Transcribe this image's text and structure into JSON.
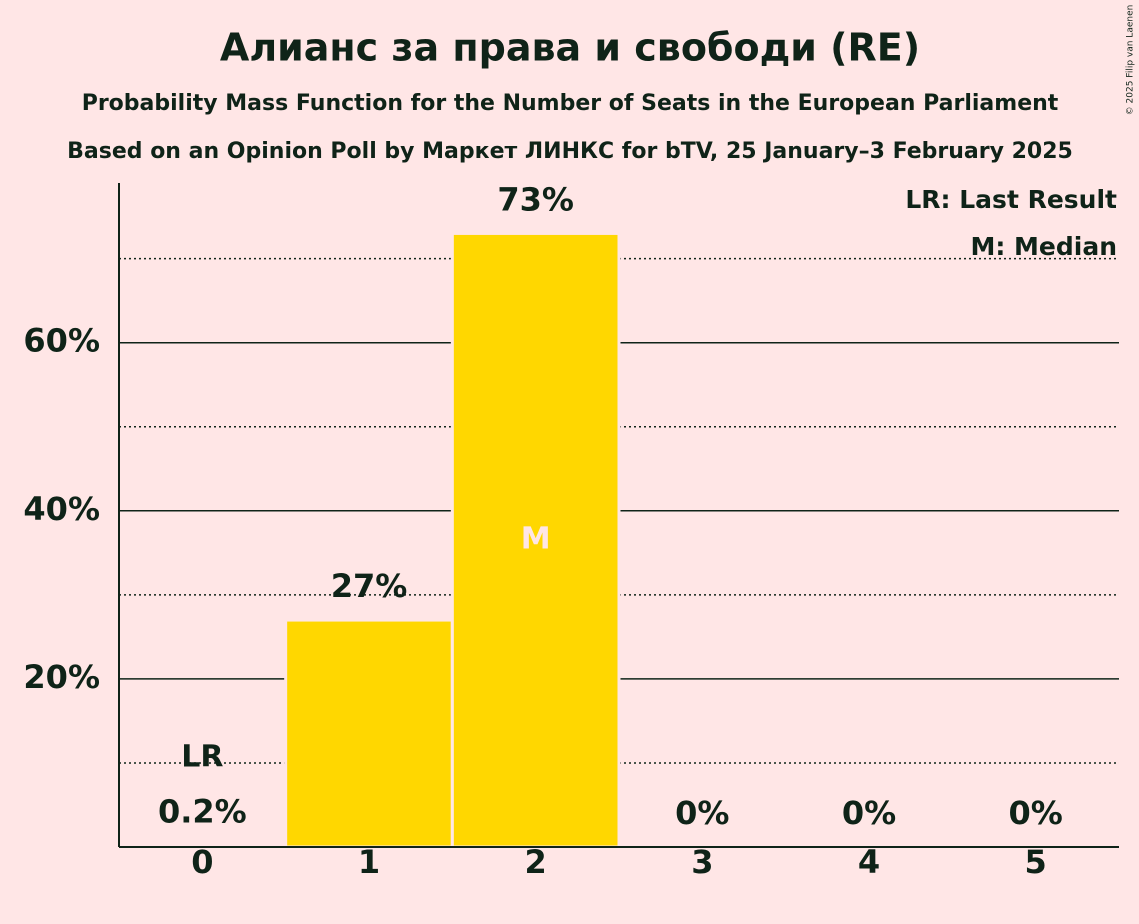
{
  "chart_data": {
    "type": "bar",
    "title": "Алианс за права и свободи (RE)",
    "subtitle": "Probability Mass Function for the Number of Seats in the European Parliament",
    "caption": "Based on an Opinion Poll by Маркет ЛИНКС for bTV, 25 January–3 February 2025",
    "copyright": "© 2025 Filip van Laenen",
    "categories": [
      "0",
      "1",
      "2",
      "3",
      "4",
      "5"
    ],
    "values": [
      0.2,
      27,
      73,
      0,
      0,
      0
    ],
    "value_labels": [
      "0.2%",
      "27%",
      "73%",
      "0%",
      "0%",
      "0%"
    ],
    "color": "#ffd700",
    "ylim": [
      0,
      79
    ],
    "yticks": [
      {
        "value": 20,
        "label": "20%"
      },
      {
        "value": 40,
        "label": "40%"
      },
      {
        "value": 60,
        "label": "60%"
      }
    ],
    "minor_yticks": [
      10,
      30,
      50,
      70
    ],
    "grid": true,
    "last_result": {
      "label": "LR",
      "category_index": 0
    },
    "median": {
      "label": "M",
      "category_index": 2
    },
    "legend": [
      "LR: Last Result",
      "M: Median"
    ],
    "legend_position": "top-right"
  }
}
